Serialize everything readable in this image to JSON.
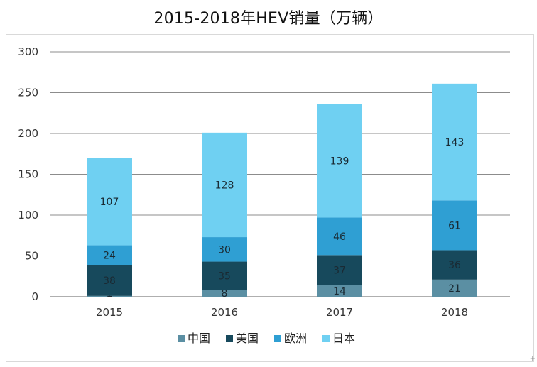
{
  "chart_data": {
    "type": "bar",
    "stacked": true,
    "title": "2015-2018年HEV销量（万辆）",
    "categories": [
      "2015",
      "2016",
      "2017",
      "2018"
    ],
    "series": [
      {
        "name": "中国",
        "color": "#5b8fa3",
        "values": [
          1,
          8,
          14,
          21
        ]
      },
      {
        "name": "美国",
        "color": "#17495c",
        "values": [
          38,
          35,
          37,
          36
        ]
      },
      {
        "name": "欧洲",
        "color": "#2f9fd3",
        "values": [
          24,
          30,
          46,
          61
        ]
      },
      {
        "name": "日本",
        "color": "#6fd0f2",
        "values": [
          107,
          128,
          139,
          143
        ]
      }
    ],
    "yticks": [
      0,
      50,
      100,
      150,
      200,
      250,
      300
    ],
    "ylim": [
      0,
      300
    ],
    "grid": true,
    "legend_position": "bottom"
  },
  "corner_mark": "+"
}
